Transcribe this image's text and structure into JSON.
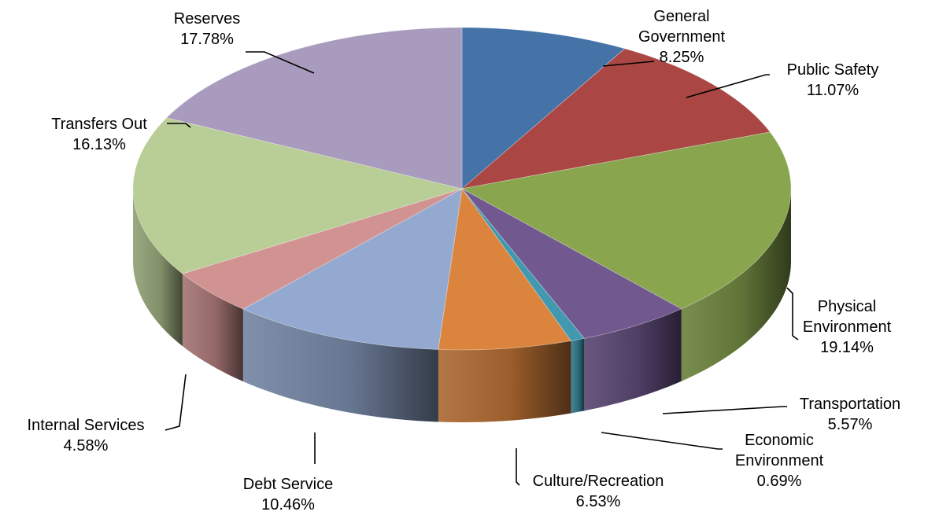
{
  "chart_data": {
    "type": "pie",
    "title": "",
    "style": "3d",
    "start": "12 o'clock",
    "direction": "clockwise",
    "legend": "none",
    "data_labels": "category name and percentage",
    "slices": [
      {
        "name": "General Government",
        "label_lines": [
          "General",
          "Government"
        ],
        "pct_text": "8.25%",
        "value": 8.25,
        "color": "#4572A7"
      },
      {
        "name": "Public Safety",
        "label_lines": [
          "Public Safety"
        ],
        "pct_text": "11.07%",
        "value": 11.07,
        "color": "#AA4643"
      },
      {
        "name": "Physical Environment",
        "label_lines": [
          "Physical",
          "Environment"
        ],
        "pct_text": "19.14%",
        "value": 19.14,
        "color": "#89A54E"
      },
      {
        "name": "Transportation",
        "label_lines": [
          "Transportation"
        ],
        "pct_text": "5.57%",
        "value": 5.57,
        "color": "#71588F"
      },
      {
        "name": "Economic Environment",
        "label_lines": [
          "Economic",
          "Environment"
        ],
        "pct_text": "0.69%",
        "value": 0.69,
        "color": "#4198AF"
      },
      {
        "name": "Culture/Recreation",
        "label_lines": [
          "Culture/Recreation"
        ],
        "pct_text": "6.53%",
        "value": 6.53,
        "color": "#DB843D"
      },
      {
        "name": "Debt Service",
        "label_lines": [
          "Debt Service"
        ],
        "pct_text": "10.46%",
        "value": 10.46,
        "color": "#93A9CF"
      },
      {
        "name": "Internal Services",
        "label_lines": [
          "Internal Services"
        ],
        "pct_text": "4.58%",
        "value": 4.58,
        "color": "#D19392"
      },
      {
        "name": "Transfers Out",
        "label_lines": [
          "Transfers Out"
        ],
        "pct_text": "16.13%",
        "value": 16.13,
        "color": "#B9CD96"
      },
      {
        "name": "Reserves",
        "label_lines": [
          "Reserves"
        ],
        "pct_text": "17.78%",
        "value": 17.78,
        "color": "#A99BBD"
      }
    ]
  }
}
